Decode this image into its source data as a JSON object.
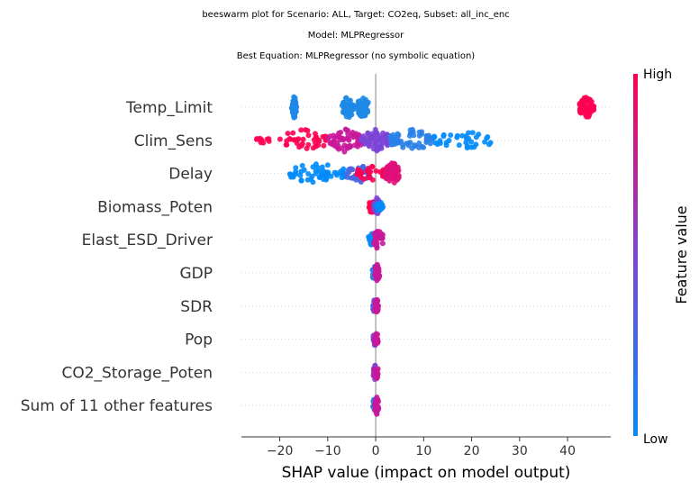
{
  "titles": {
    "line1": "beeswarm plot for Scenario: ALL, Target: CO2eq, Subset: all_inc_enc",
    "line2": "Model: MLPRegressor",
    "line3": "Best Equation: MLPRegressor (no symbolic equation)"
  },
  "chart_data": {
    "type": "scatter",
    "subtype": "beeswarm",
    "xlabel": "SHAP value (impact on model output)",
    "xlim": [
      -28,
      49
    ],
    "xticks": [
      -20,
      -10,
      0,
      10,
      20,
      30,
      40
    ],
    "colorbar": {
      "label": "Feature value",
      "high_label": "High",
      "low_label": "Low",
      "low_color": "#008bfb",
      "mid_color": "#7c45d6",
      "high_color": "#ff0052"
    },
    "grid": false,
    "features": [
      {
        "name": "Temp_Limit",
        "clusters": [
          {
            "lo": -17.5,
            "hi": -16.5,
            "color": "#1e88e5",
            "size": 45
          },
          {
            "lo": -7,
            "hi": -4.5,
            "color": "#1e88e5",
            "size": 45
          },
          {
            "lo": -4,
            "hi": -1.5,
            "color": "#1e88e5",
            "size": 45
          },
          {
            "lo": 42.5,
            "hi": 45.5,
            "color": "#ff0052",
            "size": 60
          }
        ]
      },
      {
        "name": "Clim_Sens",
        "clusters": [
          {
            "lo": -25,
            "hi": -22,
            "color": "#ff0052",
            "size": 10
          },
          {
            "lo": -20,
            "hi": -10,
            "color": "#ff0052",
            "size": 40
          },
          {
            "lo": -10,
            "hi": -3,
            "color": "#c8189a",
            "size": 55
          },
          {
            "lo": -3,
            "hi": 3,
            "color": "#7c45d6",
            "size": 70
          },
          {
            "lo": 3,
            "hi": 12,
            "color": "#2a7fe8",
            "size": 55
          },
          {
            "lo": 12,
            "hi": 24,
            "color": "#008bfb",
            "size": 35
          }
        ]
      },
      {
        "name": "Delay",
        "clusters": [
          {
            "lo": -18,
            "hi": -6,
            "color": "#008bfb",
            "size": 55
          },
          {
            "lo": -6,
            "hi": -1,
            "color": "#4a66e0",
            "size": 35
          },
          {
            "lo": -4,
            "hi": 2,
            "color": "#ff0052",
            "size": 30
          },
          {
            "lo": 2,
            "hi": 5,
            "color": "#e0107a",
            "size": 60
          }
        ]
      },
      {
        "name": "Biomass_Poten",
        "clusters": [
          {
            "lo": -1.5,
            "hi": 0,
            "color": "#ff0052",
            "size": 25
          },
          {
            "lo": -0.5,
            "hi": 1,
            "color": "#7c45d6",
            "size": 30
          },
          {
            "lo": 0,
            "hi": 1.5,
            "color": "#008bfb",
            "size": 20
          }
        ]
      },
      {
        "name": "Elast_ESD_Driver",
        "clusters": [
          {
            "lo": -1.5,
            "hi": 0,
            "color": "#008bfb",
            "size": 25
          },
          {
            "lo": -0.5,
            "hi": 1.5,
            "color": "#c8189a",
            "size": 40
          }
        ]
      },
      {
        "name": "GDP",
        "clusters": [
          {
            "lo": -0.8,
            "hi": 0.2,
            "color": "#2a7fe8",
            "size": 25
          },
          {
            "lo": -0.2,
            "hi": 0.8,
            "color": "#c8189a",
            "size": 30
          }
        ]
      },
      {
        "name": "SDR",
        "clusters": [
          {
            "lo": -0.6,
            "hi": 0.2,
            "color": "#5a5ae0",
            "size": 25
          },
          {
            "lo": -0.2,
            "hi": 0.6,
            "color": "#c8189a",
            "size": 25
          }
        ]
      },
      {
        "name": "Pop",
        "clusters": [
          {
            "lo": -0.5,
            "hi": 0.2,
            "color": "#7c45d6",
            "size": 25
          },
          {
            "lo": -0.2,
            "hi": 0.5,
            "color": "#c8189a",
            "size": 25
          }
        ]
      },
      {
        "name": "CO2_Storage_Poten",
        "clusters": [
          {
            "lo": -0.5,
            "hi": 0.2,
            "color": "#7c45d6",
            "size": 25
          },
          {
            "lo": -0.2,
            "hi": 0.5,
            "color": "#c8189a",
            "size": 25
          }
        ]
      },
      {
        "name": "Sum of 11 other features",
        "clusters": [
          {
            "lo": -0.6,
            "hi": 0.2,
            "color": "#2a7fe8",
            "size": 30
          },
          {
            "lo": -0.2,
            "hi": 0.6,
            "color": "#c8189a",
            "size": 30
          }
        ]
      }
    ]
  }
}
